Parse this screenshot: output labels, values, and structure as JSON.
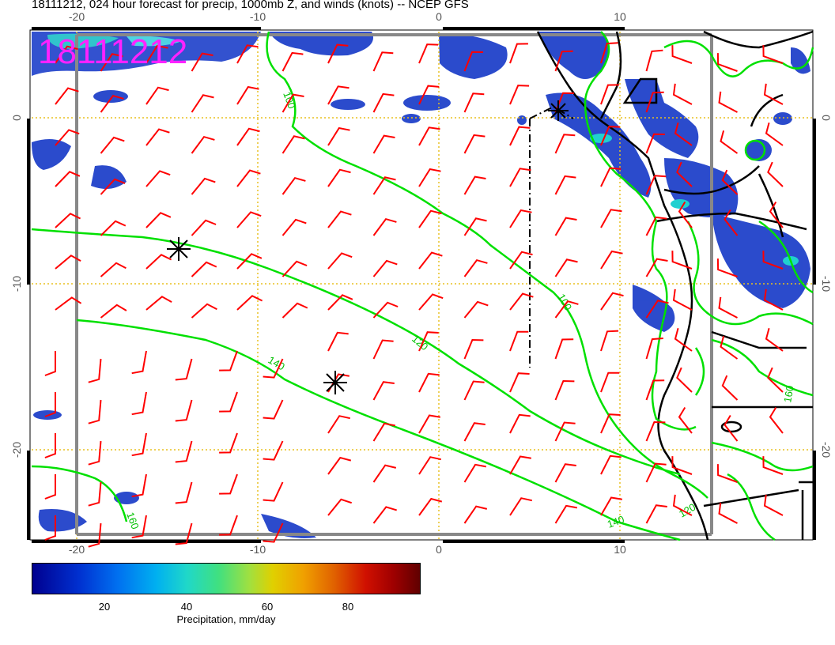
{
  "title": "18111212, 024 hour forecast for precip, 1000mb Z, and winds (knots) -- NCEP GFS",
  "stamp": "18111212",
  "stamp_color": "#ff22ff",
  "x_ticks": [
    "-20",
    "-10",
    "0",
    "10"
  ],
  "y_ticks": [
    "0",
    "-10",
    "-20"
  ],
  "contour_labels": [
    "100",
    "120",
    "140",
    "160",
    "100",
    "120",
    "140",
    "160"
  ],
  "colorbar": {
    "ticks": [
      "20",
      "40",
      "60",
      "80"
    ],
    "label": "Precipitation, mm/day"
  },
  "colors": {
    "contour": "#00e000",
    "wind": "#ff0000",
    "grid": "#e8c020",
    "coast": "#000000",
    "precip": "#1030c0"
  },
  "icons": [
    "storm-symbol-icon"
  ]
}
